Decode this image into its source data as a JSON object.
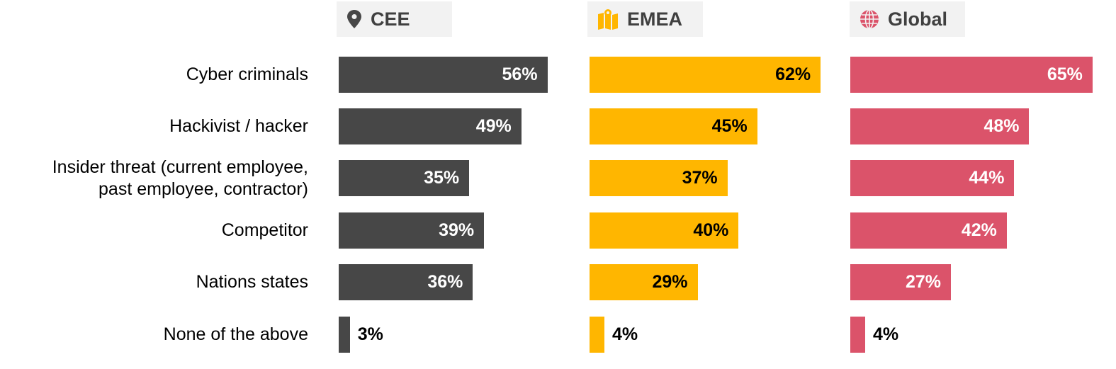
{
  "chart_data": {
    "type": "bar",
    "orientation": "horizontal",
    "categories": [
      "Cyber criminals",
      "Hackivist / hacker",
      "Insider threat (current employee, past employee, contractor)",
      "Competitor",
      "Nations states",
      "None of the above"
    ],
    "category_lines": [
      [
        "Cyber criminals"
      ],
      [
        "Hackivist / hacker"
      ],
      [
        "Insider threat (current employee,",
        "past employee, contractor)"
      ],
      [
        "Competitor"
      ],
      [
        "Nations states"
      ],
      [
        "None of the above"
      ]
    ],
    "series": [
      {
        "name": "CEE",
        "icon": "map-pin-icon",
        "color": "#474747",
        "label_color": "#ffffff",
        "values": [
          56,
          49,
          35,
          39,
          36,
          3
        ],
        "labels": [
          "56%",
          "49%",
          "35%",
          "39%",
          "36%",
          "3%"
        ]
      },
      {
        "name": "EMEA",
        "icon": "map-icon",
        "color": "#ffb600",
        "label_color": "#000000",
        "values": [
          62,
          45,
          37,
          40,
          29,
          4
        ],
        "labels": [
          "62%",
          "45%",
          "37%",
          "40%",
          "29%",
          "4%"
        ]
      },
      {
        "name": "Global",
        "icon": "globe-icon",
        "color": "#db536a",
        "label_color": "#ffffff",
        "values": [
          65,
          48,
          44,
          42,
          27,
          4
        ],
        "labels": [
          "65%",
          "48%",
          "44%",
          "42%",
          "27%",
          "4%"
        ]
      }
    ],
    "unit": "%",
    "xlim": [
      0,
      100
    ]
  }
}
